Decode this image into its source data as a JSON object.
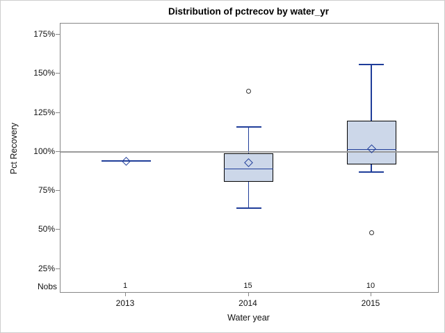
{
  "figure": {
    "title": "Distribution of pctrecov by water_yr"
  },
  "chart_data": {
    "type": "box",
    "title": "Distribution of pctrecov by water_yr",
    "xlabel": "Water year",
    "ylabel": "Pct Recovery",
    "y_unit": "%",
    "yticks": [
      175,
      150,
      125,
      100,
      75,
      50,
      25
    ],
    "ylim": [
      10,
      182
    ],
    "reference_line": 100,
    "grid": "off",
    "legend": "none",
    "nobs_label": "Nobs",
    "categories": [
      "2013",
      "2014",
      "2015"
    ],
    "nobs_values": [
      1,
      15,
      10
    ],
    "series": [
      {
        "category": "2013",
        "n": 1,
        "mean": 94,
        "median": 94,
        "q1": 94,
        "q3": 94,
        "whisker_low": 94,
        "whisker_high": 94,
        "outliers": []
      },
      {
        "category": "2014",
        "n": 15,
        "mean": 93,
        "median": 89,
        "q1": 81,
        "q3": 99,
        "whisker_low": 64,
        "whisker_high": 116,
        "outliers": [
          139
        ]
      },
      {
        "category": "2015",
        "n": 10,
        "mean": 102,
        "median": 101.5,
        "q1": 92,
        "q3": 120,
        "whisker_low": 87,
        "whisker_high": 156,
        "outliers": [
          48
        ]
      }
    ],
    "colors": {
      "box_fill": "#ccd7e9",
      "box_border": "#000000",
      "line_blue": "#1f3d99",
      "outlier_stroke": "#333333",
      "reference_line": "#9a9a9a",
      "axis_border": "#868686",
      "figure_border": "#cdcdcd"
    }
  }
}
